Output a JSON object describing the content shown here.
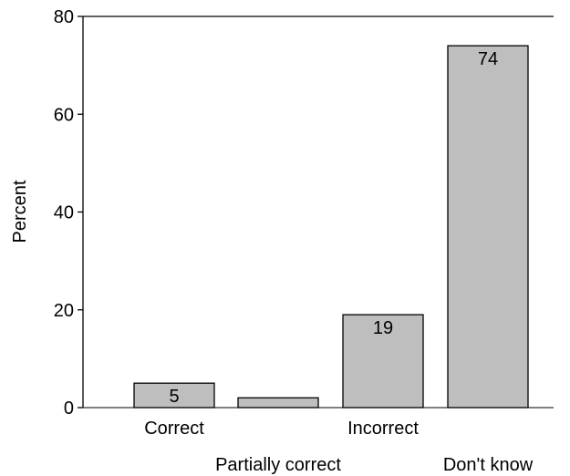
{
  "chart_data": {
    "type": "bar",
    "categories": [
      "Correct",
      "Partially correct",
      "Incorrect",
      "Don't know"
    ],
    "values": [
      5,
      2,
      19,
      74
    ],
    "data_labels": [
      "5",
      "",
      "19",
      "74"
    ],
    "title": "",
    "xlabel": "",
    "ylabel": "Percent",
    "ylim": [
      0,
      80
    ],
    "yticks": [
      0,
      20,
      40,
      60,
      80
    ],
    "grid": false,
    "bar_color": "#bebebe",
    "bar_edge_color": "#000000"
  }
}
